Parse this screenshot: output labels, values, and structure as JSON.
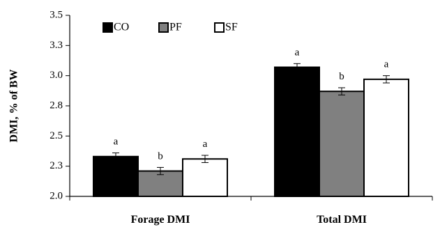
{
  "chart_data": {
    "type": "bar",
    "title": "",
    "xlabel": "",
    "ylabel": "DMI, % of BW",
    "ylim": [
      2.0,
      3.5
    ],
    "yticks": [
      "2.0",
      "2.3",
      "2.5",
      "2.8",
      "3.0",
      "3.3",
      "3.5"
    ],
    "ytick_values": [
      2.0,
      2.25,
      2.5,
      2.75,
      3.0,
      3.25,
      3.5
    ],
    "categories": [
      "Forage DMI",
      "Total DMI"
    ],
    "legend_position": "top-left",
    "grid": false,
    "series": [
      {
        "name": "CO",
        "color": "#000000",
        "values": [
          2.33,
          3.07
        ],
        "errors": [
          0.03,
          0.03
        ],
        "letters": [
          "a",
          "a"
        ]
      },
      {
        "name": "PF",
        "color": "#808080",
        "values": [
          2.21,
          2.87
        ],
        "errors": [
          0.03,
          0.03
        ],
        "letters": [
          "b",
          "b"
        ]
      },
      {
        "name": "SF",
        "color": "#ffffff",
        "values": [
          2.31,
          2.97
        ],
        "errors": [
          0.03,
          0.03
        ],
        "letters": [
          "a",
          "a"
        ]
      }
    ]
  }
}
